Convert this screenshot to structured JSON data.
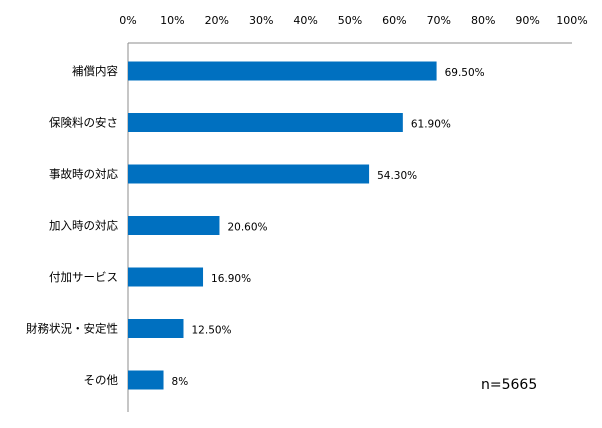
{
  "chart_data": {
    "type": "bar",
    "orientation": "horizontal",
    "categories": [
      "補償内容",
      "保険料の安さ",
      "事故時の対応",
      "加入時の対応",
      "付加サービス",
      "財務状況・安定性",
      "その他"
    ],
    "values": [
      69.5,
      61.9,
      54.3,
      20.6,
      16.9,
      12.5,
      8
    ],
    "value_labels": [
      "69.50%",
      "61.90%",
      "54.30%",
      "20.60%",
      "16.90%",
      "12.50%",
      "8%"
    ],
    "x_ticks": [
      "0%",
      "10%",
      "20%",
      "30%",
      "40%",
      "50%",
      "60%",
      "70%",
      "80%",
      "90%",
      "100%"
    ],
    "xlim": [
      0,
      100
    ],
    "x_axis_position": "top",
    "grid": false,
    "bar_color": "#0070c0",
    "annotation": "n=5665"
  }
}
